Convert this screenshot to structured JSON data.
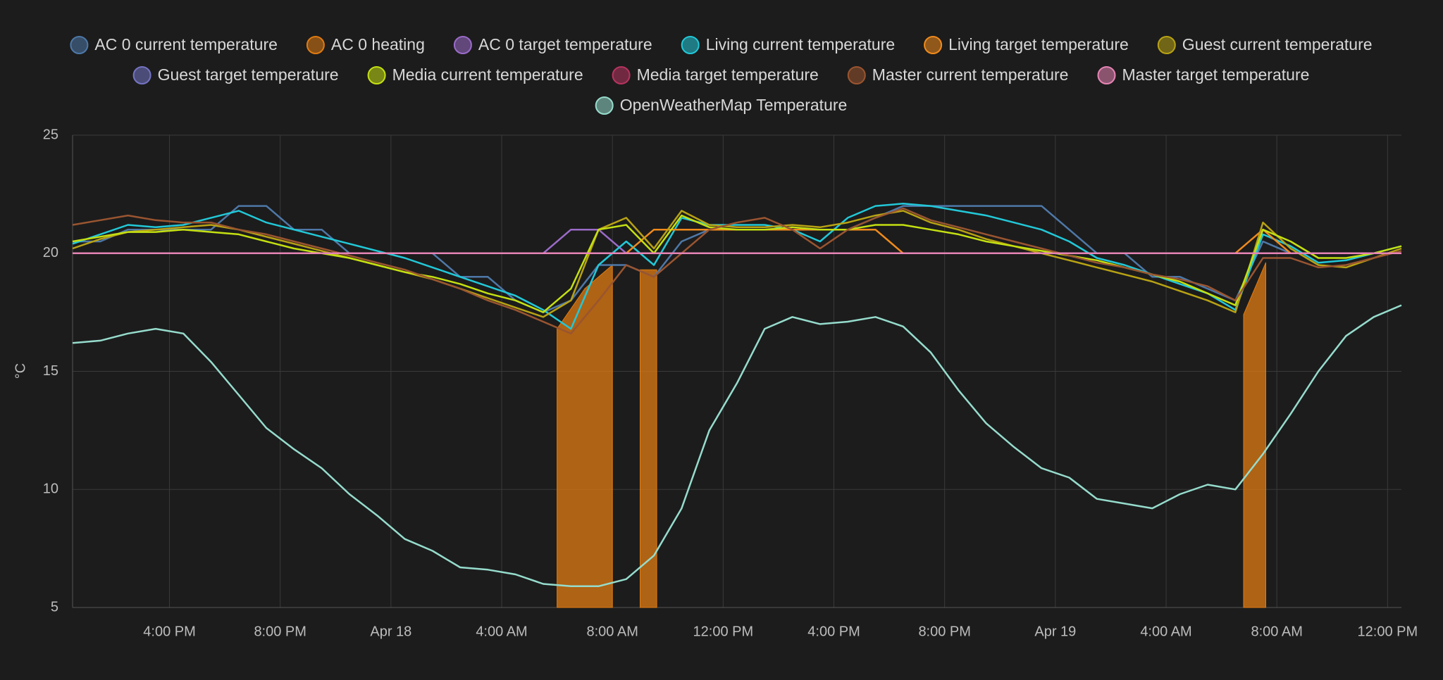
{
  "chart_data": {
    "type": "line",
    "y_label": "°C",
    "x": [
      12.5,
      13.5,
      14.5,
      15.5,
      16.5,
      17.5,
      18.5,
      19.5,
      20.5,
      21.5,
      22.5,
      23.5,
      24.5,
      25.5,
      26.5,
      27.5,
      28.5,
      29.5,
      30.5,
      31.5,
      32.5,
      33.5,
      34.5,
      35.5,
      36.5,
      37.5,
      38.5,
      39.5,
      40.5,
      41.5,
      42.5,
      43.5,
      44.5,
      45.5,
      46.5,
      47.5,
      48.5,
      49.5,
      50.5,
      51.5,
      52.5,
      53.5,
      54.5,
      55.5,
      56.5,
      57.5,
      58.5,
      59.5,
      60.5
    ],
    "xlim": [
      12.5,
      60.5
    ],
    "xticks": [
      {
        "value": 16,
        "label": "4:00 PM"
      },
      {
        "value": 20,
        "label": "8:00 PM"
      },
      {
        "value": 24,
        "label": "Apr 18"
      },
      {
        "value": 28,
        "label": "4:00 AM"
      },
      {
        "value": 32,
        "label": "8:00 AM"
      },
      {
        "value": 36,
        "label": "12:00 PM"
      },
      {
        "value": 40,
        "label": "4:00 PM"
      },
      {
        "value": 44,
        "label": "8:00 PM"
      },
      {
        "value": 48,
        "label": "Apr 19"
      },
      {
        "value": 52,
        "label": "4:00 AM"
      },
      {
        "value": 56,
        "label": "8:00 AM"
      },
      {
        "value": 60,
        "label": "12:00 PM"
      }
    ],
    "ylim": [
      5,
      25
    ],
    "yticks": [
      5,
      10,
      15,
      20,
      25
    ],
    "grid": true,
    "series": [
      {
        "name": "AC 0 current temperature",
        "color": "#4e78a8",
        "values": [
          20.5,
          20.5,
          21,
          21,
          21,
          21,
          22,
          22,
          21,
          21,
          20,
          20,
          20,
          20,
          19,
          19,
          18,
          17.5,
          18,
          19.5,
          19.5,
          19,
          20.5,
          21,
          21,
          21,
          21,
          21,
          21,
          21.5,
          22,
          22,
          22,
          22,
          22,
          22,
          21,
          20,
          20,
          19,
          19,
          18.5,
          18,
          20.5,
          20,
          20,
          20,
          20,
          20
        ]
      },
      {
        "name": "AC 0 heating",
        "color": "#e07b12",
        "fill": true,
        "x": [
          30.0,
          31.0,
          32.0,
          32.5,
          33.0,
          33.6,
          34.0,
          54.8,
          55.6
        ],
        "values": [
          16.8,
          18.5,
          19.5,
          null,
          19.3,
          19.3,
          null,
          17.4,
          19.6
        ]
      },
      {
        "name": "AC 0 target temperature",
        "color": "#9b6bc9",
        "values": [
          20,
          20,
          20,
          20,
          20,
          20,
          20,
          20,
          20,
          20,
          20,
          20,
          20,
          20,
          20,
          20,
          20,
          20,
          21,
          21,
          20,
          20,
          20,
          20,
          20,
          20,
          20,
          20,
          20,
          20,
          20,
          20,
          20,
          20,
          20,
          20,
          20,
          20,
          20,
          20,
          20,
          20,
          20,
          20,
          20,
          20,
          20,
          20,
          20
        ]
      },
      {
        "name": "Living current temperature",
        "color": "#22c8d8",
        "values": [
          20.4,
          20.8,
          21.2,
          21.1,
          21.2,
          21.5,
          21.8,
          21.3,
          21.0,
          20.7,
          20.4,
          20.1,
          19.8,
          19.4,
          19.0,
          18.6,
          18.2,
          17.6,
          16.8,
          19.5,
          20.5,
          19.5,
          21.5,
          21.2,
          21.2,
          21.2,
          21.0,
          20.5,
          21.5,
          22.0,
          22.1,
          22.0,
          21.8,
          21.6,
          21.3,
          21.0,
          20.5,
          19.8,
          19.5,
          19.1,
          18.7,
          18.3,
          17.6,
          20.8,
          20.3,
          19.6,
          19.7,
          20.0,
          20.3
        ]
      },
      {
        "name": "Living target temperature",
        "color": "#f08a1c",
        "values": [
          20,
          20,
          20,
          20,
          20,
          20,
          20,
          20,
          20,
          20,
          20,
          20,
          20,
          20,
          20,
          20,
          20,
          20,
          20,
          20,
          20,
          21,
          21,
          21,
          21,
          21,
          21,
          21,
          21,
          21,
          20,
          20,
          20,
          20,
          20,
          20,
          20,
          20,
          20,
          20,
          20,
          20,
          20,
          21,
          20,
          20,
          20,
          20,
          20
        ]
      },
      {
        "name": "Guest current temperature",
        "color": "#b8a214",
        "values": [
          20.2,
          20.6,
          20.9,
          21.0,
          21.1,
          21.2,
          21.0,
          20.7,
          20.4,
          20.1,
          19.8,
          19.5,
          19.2,
          18.9,
          18.5,
          18.1,
          17.7,
          17.3,
          18.0,
          21.0,
          21.5,
          20.2,
          21.8,
          21.2,
          21.1,
          21.1,
          21.2,
          21.1,
          21.3,
          21.6,
          21.8,
          21.3,
          21.0,
          20.6,
          20.3,
          20.0,
          19.7,
          19.4,
          19.1,
          18.8,
          18.4,
          18.0,
          17.5,
          21.3,
          20.2,
          19.5,
          19.4,
          19.8,
          20.2
        ]
      },
      {
        "name": "Guest target temperature",
        "color": "#7474c4",
        "values": [
          20,
          20,
          20,
          20,
          20,
          20,
          20,
          20,
          20,
          20,
          20,
          20,
          20,
          20,
          20,
          20,
          20,
          20,
          20,
          20,
          20,
          20,
          20,
          20,
          20,
          20,
          20,
          20,
          20,
          20,
          20,
          20,
          20,
          20,
          20,
          20,
          20,
          20,
          20,
          20,
          20,
          20,
          20,
          20,
          20,
          20,
          20,
          20,
          20
        ]
      },
      {
        "name": "Media current temperature",
        "color": "#c4e011",
        "values": [
          20.5,
          20.7,
          20.9,
          20.9,
          21.0,
          20.9,
          20.8,
          20.5,
          20.2,
          20.0,
          19.8,
          19.5,
          19.2,
          19.0,
          18.7,
          18.3,
          18.0,
          17.5,
          18.5,
          21.0,
          21.2,
          20.0,
          21.6,
          21.1,
          21.0,
          21.0,
          21.1,
          21.0,
          21.0,
          21.2,
          21.2,
          21.0,
          20.8,
          20.5,
          20.3,
          20.1,
          19.9,
          19.7,
          19.4,
          19.1,
          18.8,
          18.3,
          17.8,
          21.0,
          20.5,
          19.8,
          19.8,
          20.0,
          20.3
        ]
      },
      {
        "name": "Media target temperature",
        "color": "#b83460",
        "values": [
          20,
          20,
          20,
          20,
          20,
          20,
          20,
          20,
          20,
          20,
          20,
          20,
          20,
          20,
          20,
          20,
          20,
          20,
          20,
          20,
          20,
          20,
          20,
          20,
          20,
          20,
          20,
          20,
          20,
          20,
          20,
          20,
          20,
          20,
          20,
          20,
          20,
          20,
          20,
          20,
          20,
          20,
          20,
          20,
          20,
          20,
          20,
          20,
          20
        ]
      },
      {
        "name": "Master current temperature",
        "color": "#9a5530",
        "values": [
          21.2,
          21.4,
          21.6,
          21.4,
          21.3,
          21.3,
          21.0,
          20.8,
          20.5,
          20.2,
          19.9,
          19.6,
          19.3,
          18.9,
          18.5,
          18.0,
          17.6,
          17.1,
          16.6,
          18.0,
          19.5,
          19.0,
          20.0,
          21.0,
          21.3,
          21.5,
          21.0,
          20.2,
          21.0,
          21.5,
          21.9,
          21.4,
          21.1,
          20.8,
          20.5,
          20.2,
          19.9,
          19.6,
          19.4,
          19.1,
          18.9,
          18.6,
          18.0,
          19.8,
          19.8,
          19.4,
          19.5,
          19.8,
          20.1
        ]
      },
      {
        "name": "Master target temperature",
        "color": "#e684b4",
        "values": [
          20,
          20,
          20,
          20,
          20,
          20,
          20,
          20,
          20,
          20,
          20,
          20,
          20,
          20,
          20,
          20,
          20,
          20,
          20,
          20,
          20,
          20,
          20,
          20,
          20,
          20,
          20,
          20,
          20,
          20,
          20,
          20,
          20,
          20,
          20,
          20,
          20,
          20,
          20,
          20,
          20,
          20,
          20,
          20,
          20,
          20,
          20,
          20,
          20
        ]
      },
      {
        "name": "OpenWeatherMap Temperature",
        "color": "#96dccd",
        "values": [
          16.2,
          16.3,
          16.6,
          16.8,
          16.6,
          15.4,
          14.0,
          12.6,
          11.7,
          10.9,
          9.8,
          8.9,
          7.9,
          7.4,
          6.7,
          6.6,
          6.4,
          6.0,
          5.9,
          5.9,
          6.2,
          7.2,
          9.2,
          12.5,
          14.5,
          16.8,
          17.3,
          17.0,
          17.1,
          17.3,
          16.9,
          15.8,
          14.2,
          12.8,
          11.8,
          10.9,
          10.5,
          9.6,
          9.4,
          9.2,
          9.8,
          10.2,
          10.0,
          11.5,
          13.2,
          15.0,
          16.5,
          17.3,
          17.8
        ]
      }
    ]
  }
}
